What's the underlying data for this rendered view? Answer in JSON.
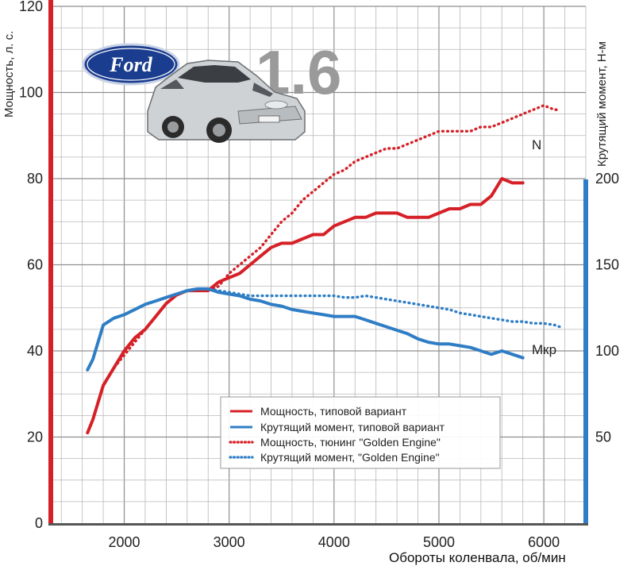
{
  "chart_data": {
    "type": "line",
    "title": "",
    "xlabel": "Обороты коленвала, об/мин",
    "ylabel_left": "Мощность, л. с.",
    "ylabel_right": "Крутящий момент, Н-м",
    "xlim": [
      1300,
      6400
    ],
    "ylim_left": [
      0,
      120
    ],
    "ylim_right": [
      0,
      300
    ],
    "x_ticks": [
      2000,
      3000,
      4000,
      5000,
      6000
    ],
    "y_ticks_left": [
      0,
      20,
      40,
      60,
      80,
      100,
      120
    ],
    "y_ticks_right": [
      50,
      100,
      150,
      200
    ],
    "grid": true,
    "legend_position": "bottom-center",
    "series": [
      {
        "name": "Мощность, типовой вариант",
        "axis": "left",
        "color": "#d62027",
        "style": "solid",
        "x": [
          1650,
          1700,
          1800,
          1900,
          2000,
          2100,
          2200,
          2300,
          2400,
          2500,
          2600,
          2700,
          2800,
          2900,
          3000,
          3100,
          3200,
          3300,
          3400,
          3500,
          3600,
          3700,
          3800,
          3900,
          4000,
          4100,
          4200,
          4300,
          4400,
          4500,
          4600,
          4700,
          4800,
          4900,
          5000,
          5100,
          5200,
          5300,
          5400,
          5500,
          5600,
          5700,
          5800
        ],
        "values": [
          21,
          24,
          32,
          36,
          40,
          43,
          45,
          48,
          51,
          53,
          54,
          54,
          54,
          56,
          57,
          58,
          60,
          62,
          64,
          65,
          65,
          66,
          67,
          67,
          69,
          70,
          71,
          71,
          72,
          72,
          72,
          71,
          71,
          71,
          72,
          73,
          73,
          74,
          74,
          76,
          80,
          79,
          79
        ]
      },
      {
        "name": "Крутящий момент, типовой вариант",
        "axis": "right",
        "color": "#2f7ec5",
        "style": "solid",
        "x": [
          1650,
          1700,
          1800,
          1900,
          2000,
          2100,
          2200,
          2300,
          2400,
          2500,
          2600,
          2700,
          2800,
          2900,
          3000,
          3100,
          3200,
          3300,
          3400,
          3500,
          3600,
          3700,
          3800,
          3900,
          4000,
          4100,
          4200,
          4300,
          4400,
          4500,
          4600,
          4700,
          4800,
          4900,
          5000,
          5100,
          5200,
          5300,
          5400,
          5500,
          5600,
          5700,
          5800
        ],
        "values": [
          89,
          95,
          115,
          119,
          121,
          124,
          127,
          129,
          131,
          133,
          135,
          136,
          136,
          134,
          133,
          132,
          130,
          129,
          127,
          126,
          124,
          123,
          122,
          121,
          120,
          120,
          120,
          118,
          116,
          114,
          112,
          110,
          107,
          105,
          104,
          104,
          103,
          102,
          100,
          98,
          100,
          98,
          96
        ]
      },
      {
        "name": "Мощность, тюнинг \"Golden Engine\"",
        "axis": "left",
        "color": "#d62027",
        "style": "dotted",
        "x": [
          1650,
          1700,
          1800,
          1900,
          2000,
          2100,
          2200,
          2300,
          2400,
          2500,
          2600,
          2700,
          2800,
          2900,
          3000,
          3100,
          3200,
          3300,
          3400,
          3500,
          3600,
          3700,
          3800,
          3900,
          4000,
          4100,
          4200,
          4300,
          4400,
          4500,
          4600,
          4700,
          4800,
          4900,
          5000,
          5100,
          5200,
          5300,
          5400,
          5500,
          5600,
          5700,
          5800,
          5900,
          6000,
          6100,
          6150
        ],
        "values": [
          21,
          24,
          32,
          36,
          39,
          42,
          45,
          48,
          51,
          53,
          54,
          54,
          54,
          55,
          58,
          60,
          62,
          64,
          67,
          70,
          72,
          75,
          77,
          79,
          81,
          82,
          84,
          85,
          86,
          87,
          87,
          88,
          89,
          90,
          91,
          91,
          91,
          91,
          92,
          92,
          93,
          94,
          95,
          96,
          97,
          96,
          96
        ]
      },
      {
        "name": "Крутящий момент, \"Golden Engine\"",
        "axis": "right",
        "color": "#2f7ec5",
        "style": "dotted",
        "x": [
          1650,
          1700,
          1800,
          1900,
          2000,
          2100,
          2200,
          2300,
          2400,
          2500,
          2600,
          2700,
          2800,
          2900,
          3000,
          3100,
          3200,
          3300,
          3400,
          3500,
          3600,
          3700,
          3800,
          3900,
          4000,
          4100,
          4200,
          4300,
          4400,
          4500,
          4600,
          4700,
          4800,
          4900,
          5000,
          5100,
          5200,
          5300,
          5400,
          5500,
          5600,
          5700,
          5800,
          5900,
          6000,
          6100,
          6150
        ],
        "values": [
          89,
          95,
          115,
          119,
          121,
          124,
          127,
          129,
          131,
          133,
          135,
          136,
          136,
          135,
          134,
          133,
          132,
          132,
          132,
          132,
          132,
          132,
          132,
          132,
          132,
          131,
          131,
          132,
          131,
          130,
          129,
          128,
          127,
          126,
          125,
          124,
          122,
          121,
          120,
          119,
          118,
          117,
          117,
          116,
          116,
          115,
          114
        ]
      }
    ],
    "annotations": [
      {
        "text": "N",
        "x": 5950,
        "y_left": 87
      },
      {
        "text": "Мкр",
        "x": 6000,
        "y_right": 102
      }
    ]
  },
  "header": {
    "logo_text": "Ford",
    "engine_badge": "1.6"
  },
  "legend": {
    "items": [
      "Мощность, типовой вариант",
      "Крутящий момент, типовой вариант",
      "Мощность, тюнинг  \"Golden Engine\"",
      "Крутящий момент,  \"Golden Engine\""
    ]
  },
  "colors": {
    "power": "#d62027",
    "torque": "#2f7ec5",
    "grid": "#b8b8b8"
  }
}
